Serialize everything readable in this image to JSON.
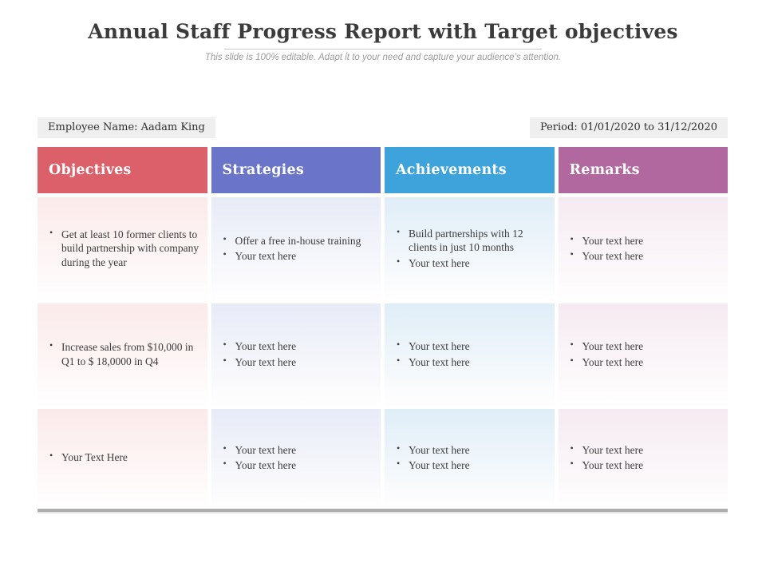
{
  "page": {
    "title": "Annual Staff Progress Report with Target objectives",
    "subtitle": "This slide is 100% editable. Adapt it to your need and capture your audience’s attention."
  },
  "meta": {
    "employee": "Employee Name: Aadam King",
    "period": "Period: 01/01/2020 to 31/12/2020"
  },
  "colors": {
    "objectives_header": "#DC6069",
    "strategies_header": "#6A74C8",
    "achievements_header": "#3EA3DB",
    "remarks_header": "#B0689E",
    "meta_badge_bg": "#EFEFEF",
    "bottom_bar": "#AEAEAE"
  },
  "table": {
    "columns": [
      {
        "key": "objectives",
        "label": "Objectives",
        "header_color": "#DC6069",
        "tint": "#FBEAEA"
      },
      {
        "key": "strategies",
        "label": "Strategies",
        "header_color": "#6A74C8",
        "tint": "#E7EBF7"
      },
      {
        "key": "achievements",
        "label": "Achievements",
        "header_color": "#3EA3DB",
        "tint": "#DFEDF7"
      },
      {
        "key": "remarks",
        "label": "Remarks",
        "header_color": "#B0689E",
        "tint": "#F5EAF1"
      }
    ],
    "rows": [
      {
        "objectives": [
          "Get at least 10 former clients to build partnership with company during the year"
        ],
        "strategies": [
          "Offer a free in-house training",
          "Your text here"
        ],
        "achievements": [
          "Build partnerships with 12 clients in just 10 months",
          "Your text here"
        ],
        "remarks": [
          "Your text here",
          "Your text here"
        ]
      },
      {
        "objectives": [
          "Increase sales from $10,000 in Q1 to $ 18,0000 in Q4"
        ],
        "strategies": [
          "Your text here",
          "Your text here"
        ],
        "achievements": [
          "Your text here",
          "Your text here"
        ],
        "remarks": [
          "Your text here",
          "Your text here"
        ]
      },
      {
        "objectives": [
          "Your Text Here"
        ],
        "strategies": [
          "Your text here",
          "Your text here"
        ],
        "achievements": [
          "Your text here",
          "Your text here"
        ],
        "remarks": [
          "Your text here",
          "Your text here"
        ]
      }
    ]
  }
}
